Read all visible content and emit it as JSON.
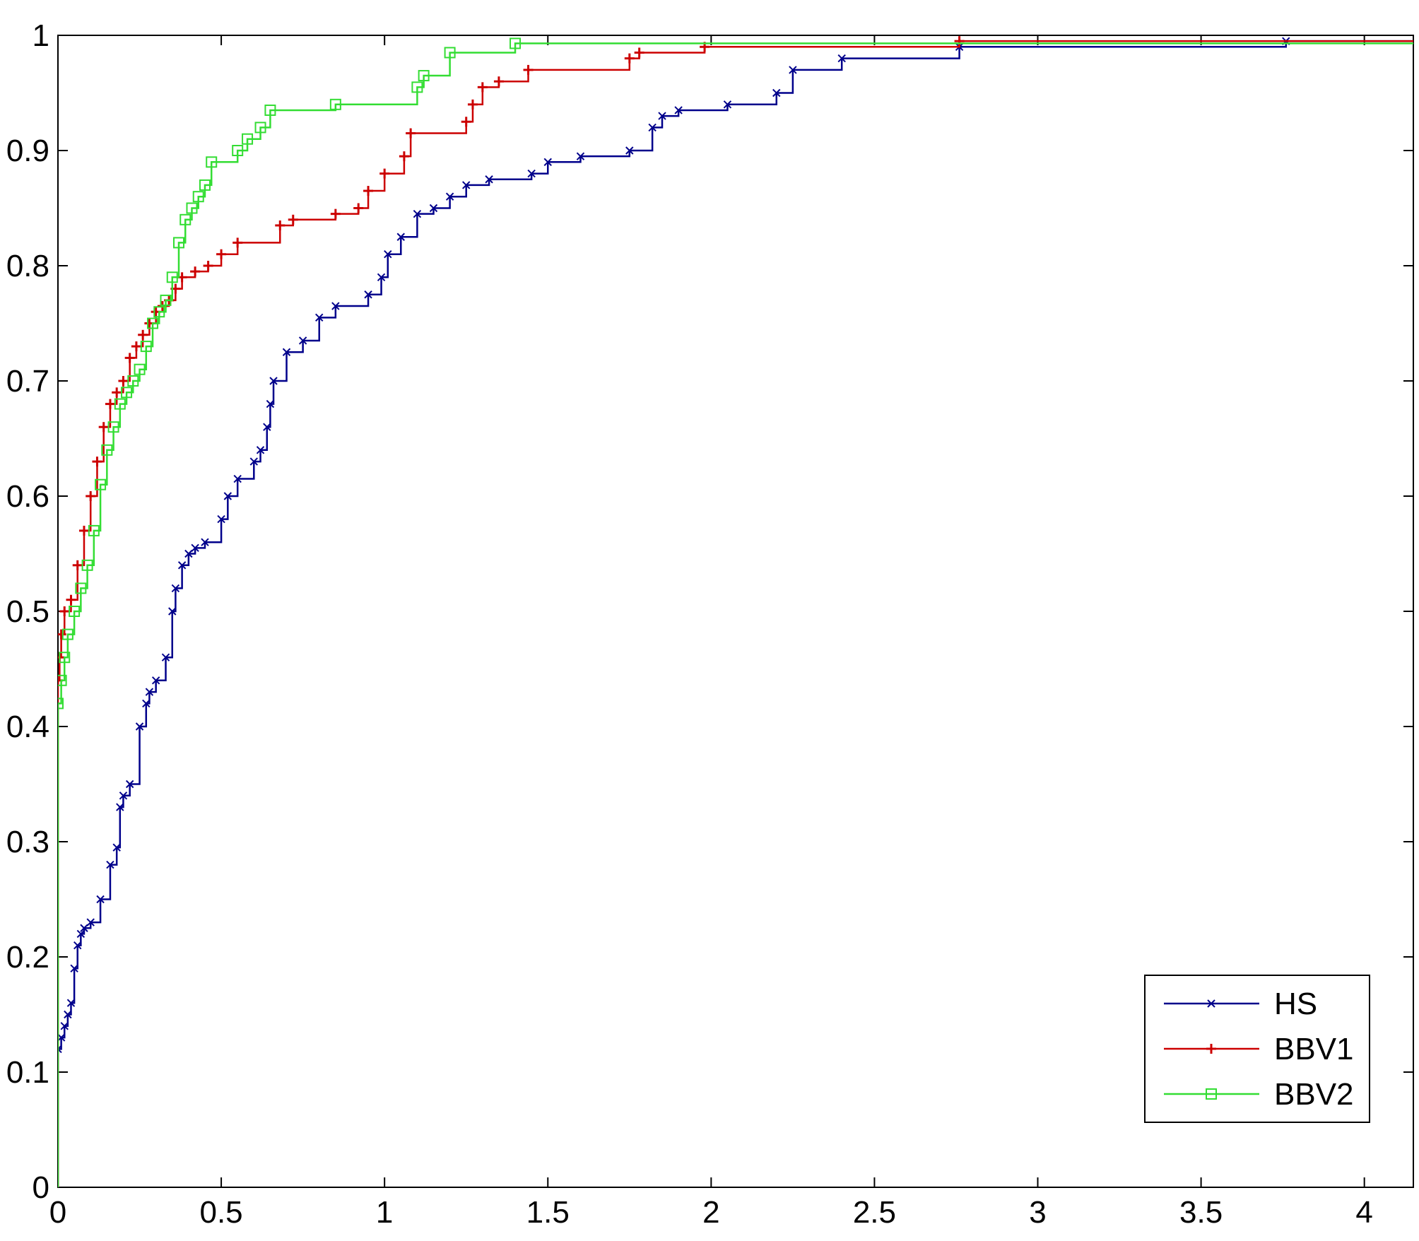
{
  "chart_data": {
    "type": "line",
    "step": true,
    "title": "",
    "xlabel": "",
    "ylabel": "",
    "xlim": [
      0,
      4.15
    ],
    "ylim": [
      0,
      1
    ],
    "xticks": [
      "0",
      "0.5",
      "1",
      "1.5",
      "2",
      "2.5",
      "3",
      "3.5",
      "4"
    ],
    "yticks": [
      "0",
      "0.1",
      "0.2",
      "0.3",
      "0.4",
      "0.5",
      "0.6",
      "0.7",
      "0.8",
      "0.9",
      "1"
    ],
    "grid": false,
    "legend_position": "bottom-right",
    "series": [
      {
        "name": "HS",
        "color": "#00008B",
        "marker": "x",
        "x": [
          0,
          0.01,
          0.02,
          0.03,
          0.04,
          0.05,
          0.06,
          0.07,
          0.08,
          0.1,
          0.13,
          0.16,
          0.18,
          0.19,
          0.2,
          0.22,
          0.25,
          0.27,
          0.28,
          0.3,
          0.33,
          0.35,
          0.36,
          0.38,
          0.4,
          0.42,
          0.45,
          0.5,
          0.52,
          0.55,
          0.6,
          0.62,
          0.64,
          0.65,
          0.66,
          0.7,
          0.75,
          0.8,
          0.85,
          0.95,
          0.99,
          1.01,
          1.05,
          1.1,
          1.15,
          1.2,
          1.25,
          1.32,
          1.45,
          1.5,
          1.6,
          1.75,
          1.82,
          1.85,
          1.9,
          2.05,
          2.2,
          2.25,
          2.4,
          2.76,
          3.76,
          4.15
        ],
        "y": [
          0.12,
          0.13,
          0.14,
          0.15,
          0.16,
          0.19,
          0.21,
          0.22,
          0.225,
          0.23,
          0.25,
          0.28,
          0.295,
          0.33,
          0.34,
          0.35,
          0.4,
          0.42,
          0.43,
          0.44,
          0.46,
          0.5,
          0.52,
          0.54,
          0.55,
          0.555,
          0.56,
          0.58,
          0.6,
          0.615,
          0.63,
          0.64,
          0.66,
          0.68,
          0.7,
          0.725,
          0.735,
          0.755,
          0.765,
          0.775,
          0.79,
          0.81,
          0.825,
          0.845,
          0.85,
          0.86,
          0.87,
          0.875,
          0.88,
          0.89,
          0.895,
          0.9,
          0.92,
          0.93,
          0.935,
          0.94,
          0.95,
          0.97,
          0.98,
          0.99,
          0.995,
          0.995
        ]
      },
      {
        "name": "BBV1",
        "color": "#CC0000",
        "marker": "+",
        "x": [
          0,
          0.005,
          0.01,
          0.02,
          0.04,
          0.06,
          0.08,
          0.1,
          0.12,
          0.14,
          0.16,
          0.18,
          0.2,
          0.22,
          0.24,
          0.26,
          0.28,
          0.3,
          0.32,
          0.34,
          0.36,
          0.38,
          0.42,
          0.46,
          0.5,
          0.55,
          0.68,
          0.72,
          0.85,
          0.92,
          0.95,
          1.0,
          1.06,
          1.08,
          1.25,
          1.27,
          1.3,
          1.35,
          1.44,
          1.75,
          1.78,
          1.98,
          2.76,
          4.15
        ],
        "y": [
          0.44,
          0.46,
          0.48,
          0.5,
          0.51,
          0.54,
          0.57,
          0.6,
          0.63,
          0.66,
          0.68,
          0.69,
          0.7,
          0.72,
          0.73,
          0.74,
          0.75,
          0.76,
          0.765,
          0.77,
          0.78,
          0.79,
          0.795,
          0.8,
          0.81,
          0.82,
          0.835,
          0.84,
          0.845,
          0.85,
          0.865,
          0.88,
          0.895,
          0.915,
          0.925,
          0.94,
          0.955,
          0.96,
          0.97,
          0.98,
          0.985,
          0.99,
          0.995,
          0.995
        ]
      },
      {
        "name": "BBV2",
        "color": "#33DD33",
        "marker": "square",
        "x": [
          0,
          0.01,
          0.02,
          0.03,
          0.05,
          0.07,
          0.09,
          0.11,
          0.13,
          0.15,
          0.17,
          0.19,
          0.21,
          0.23,
          0.25,
          0.27,
          0.29,
          0.31,
          0.33,
          0.35,
          0.37,
          0.39,
          0.41,
          0.43,
          0.45,
          0.47,
          0.55,
          0.58,
          0.62,
          0.65,
          0.85,
          1.1,
          1.12,
          1.2,
          1.4,
          4.15
        ],
        "y": [
          0.42,
          0.44,
          0.46,
          0.48,
          0.5,
          0.52,
          0.54,
          0.57,
          0.61,
          0.64,
          0.66,
          0.68,
          0.69,
          0.7,
          0.71,
          0.73,
          0.75,
          0.76,
          0.77,
          0.79,
          0.82,
          0.84,
          0.85,
          0.86,
          0.87,
          0.89,
          0.9,
          0.91,
          0.92,
          0.935,
          0.94,
          0.955,
          0.965,
          0.985,
          0.993,
          0.993
        ]
      }
    ]
  }
}
